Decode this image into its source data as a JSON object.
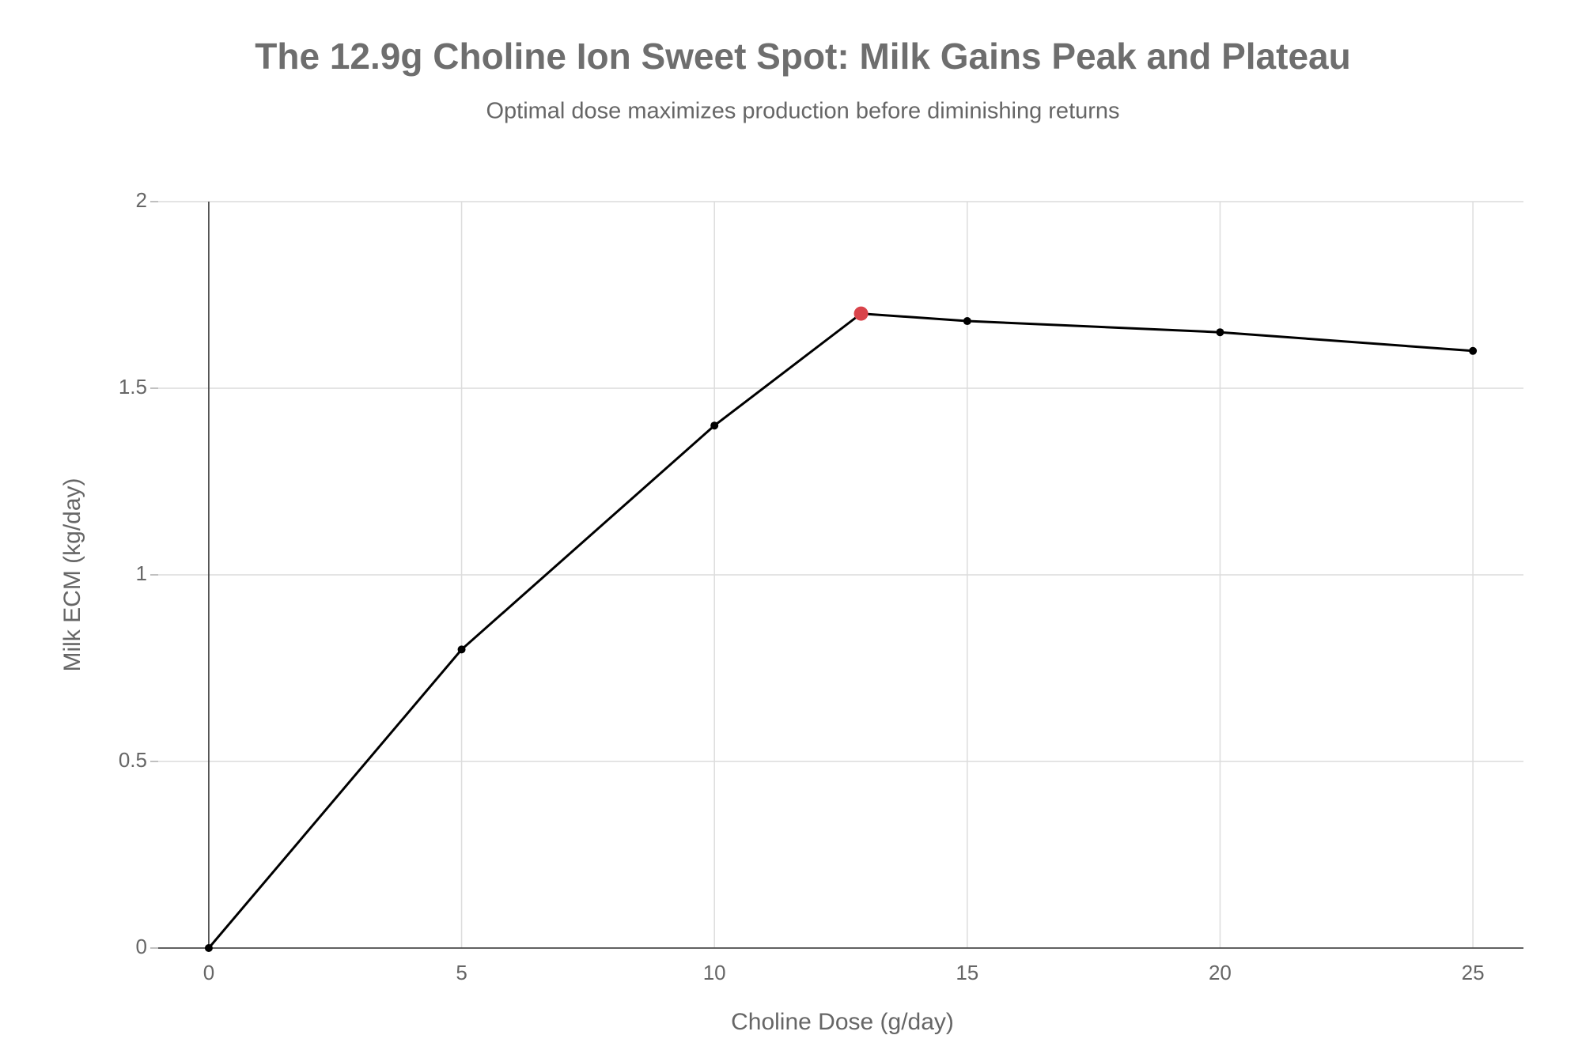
{
  "chart_data": {
    "type": "line",
    "title": "The 12.9g Choline Ion Sweet Spot: Milk Gains Peak and Plateau",
    "subtitle": "Optimal dose maximizes production before diminishing returns",
    "x_label": "Choline Dose (g/day)",
    "y_label": "Milk ECM (kg/day)",
    "x": [
      0,
      5,
      10,
      12.9,
      15,
      20,
      25
    ],
    "series": [
      {
        "name": "Milk ECM",
        "color": "#000000",
        "values": [
          0,
          0.8,
          1.4,
          1.7,
          1.68,
          1.65,
          1.6
        ]
      }
    ],
    "highlight_index": 3,
    "highlight_color": "#d9434a",
    "xlim": [
      -1,
      26
    ],
    "xticks": [
      0,
      5,
      10,
      15,
      20,
      25
    ],
    "ylim": [
      0,
      2
    ],
    "yticks": [
      0,
      0.5,
      1,
      1.5,
      2
    ],
    "grid": true
  }
}
